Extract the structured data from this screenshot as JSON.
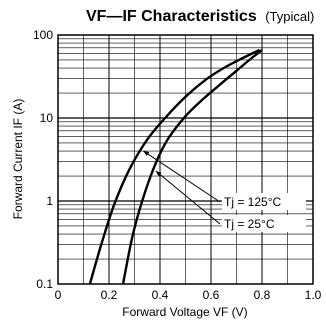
{
  "chart_data": {
    "type": "line",
    "title": "VF—IF  Characteristics",
    "subtitle": "(Typical)",
    "xlabel": "Forward Voltage  VF (V)",
    "ylabel": "Forward Current  IF (A)",
    "xlim": [
      0,
      1.0
    ],
    "ylim": [
      0.1,
      100
    ],
    "yscale": "log",
    "grid": true,
    "x_ticks": [
      "0",
      "0.2",
      "0.4",
      "0.6",
      "0.8",
      "1.0"
    ],
    "y_ticks": [
      "0.1",
      "1",
      "10",
      "100"
    ],
    "series": [
      {
        "name": "Tj = 125°C",
        "x": [
          0.125,
          0.17,
          0.22,
          0.28,
          0.35,
          0.42,
          0.5,
          0.58,
          0.65,
          0.72,
          0.79
        ],
        "y": [
          0.1,
          0.3,
          0.9,
          2.4,
          5.5,
          10,
          18,
          29,
          40,
          52,
          66
        ]
      },
      {
        "name": "Tj =  25°C",
        "x": [
          0.255,
          0.29,
          0.33,
          0.38,
          0.43,
          0.5,
          0.57,
          0.64,
          0.7,
          0.75,
          0.8
        ],
        "y": [
          0.1,
          0.35,
          1.0,
          2.7,
          5.5,
          10.5,
          17,
          26,
          37,
          50,
          66
        ]
      }
    ],
    "annotations": [
      {
        "text": "Tj = 125°C",
        "series": 0
      },
      {
        "text": "Tj =  25°C",
        "series": 1
      }
    ]
  }
}
